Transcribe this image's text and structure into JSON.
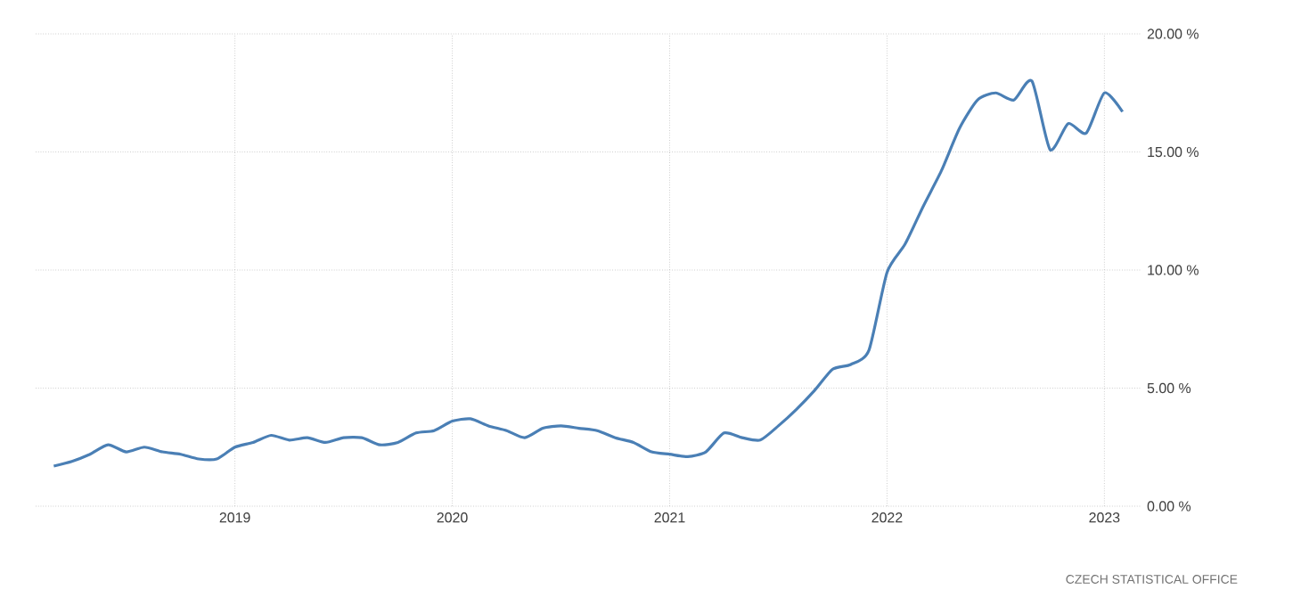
{
  "chart_data": {
    "type": "line",
    "x": [
      "2018-03",
      "2018-04",
      "2018-05",
      "2018-06",
      "2018-07",
      "2018-08",
      "2018-09",
      "2018-10",
      "2018-11",
      "2018-12",
      "2019-01",
      "2019-02",
      "2019-03",
      "2019-04",
      "2019-05",
      "2019-06",
      "2019-07",
      "2019-08",
      "2019-09",
      "2019-10",
      "2019-11",
      "2019-12",
      "2020-01",
      "2020-02",
      "2020-03",
      "2020-04",
      "2020-05",
      "2020-06",
      "2020-07",
      "2020-08",
      "2020-09",
      "2020-10",
      "2020-11",
      "2020-12",
      "2021-01",
      "2021-02",
      "2021-03",
      "2021-04",
      "2021-05",
      "2021-06",
      "2021-07",
      "2021-08",
      "2021-09",
      "2021-10",
      "2021-11",
      "2021-12",
      "2022-01",
      "2022-02",
      "2022-03",
      "2022-04",
      "2022-05",
      "2022-06",
      "2022-07",
      "2022-08",
      "2022-09",
      "2022-10",
      "2022-11",
      "2022-12",
      "2023-01",
      "2023-02"
    ],
    "series": [
      {
        "color": "#4a7fb5",
        "values": [
          1.7,
          1.9,
          2.2,
          2.6,
          2.3,
          2.5,
          2.3,
          2.2,
          2.0,
          2.0,
          2.5,
          2.7,
          3.0,
          2.8,
          2.9,
          2.7,
          2.9,
          2.9,
          2.6,
          2.7,
          3.1,
          3.2,
          3.6,
          3.7,
          3.4,
          3.2,
          2.9,
          3.3,
          3.4,
          3.3,
          3.2,
          2.9,
          2.7,
          2.3,
          2.2,
          2.1,
          2.3,
          3.1,
          2.9,
          2.8,
          3.4,
          4.1,
          4.9,
          5.8,
          6.0,
          6.6,
          9.9,
          11.1,
          12.7,
          14.2,
          16.0,
          17.2,
          17.5,
          17.2,
          18.0,
          15.1,
          16.2,
          15.8,
          17.5,
          16.7
        ]
      }
    ],
    "xlim": [
      "2018-02",
      "2023-03"
    ],
    "xticks": [
      "2019",
      "2020",
      "2021",
      "2022",
      "2023"
    ],
    "ylim": [
      0,
      20
    ],
    "yticks": [
      {
        "value": 0,
        "label": "0.00 %"
      },
      {
        "value": 5,
        "label": "5.00 %"
      },
      {
        "value": 10,
        "label": "10.00 %"
      },
      {
        "value": 15,
        "label": "15.00 %"
      },
      {
        "value": 20,
        "label": "20.00 %"
      }
    ],
    "grid": true,
    "marker": "none",
    "line_style": "solid",
    "annotations": [
      "CZECH STATISTICAL OFFICE"
    ]
  }
}
